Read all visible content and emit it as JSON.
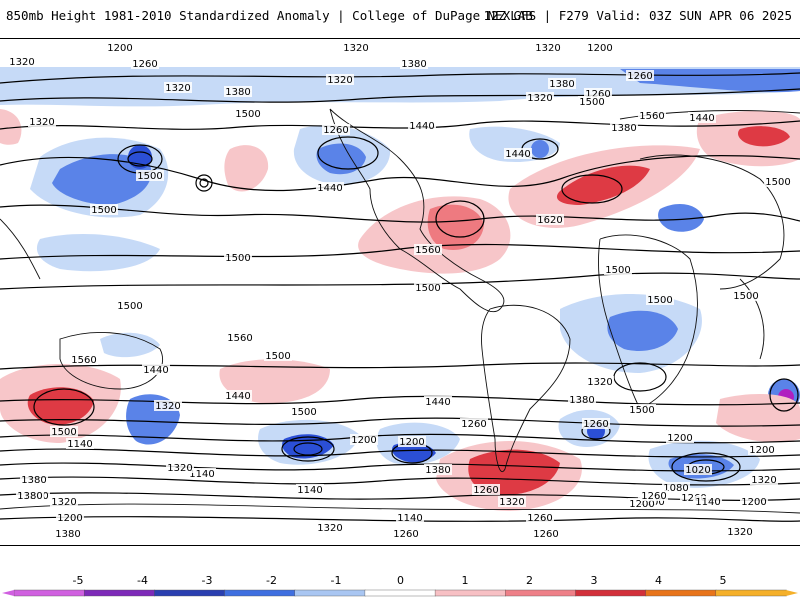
{
  "header": {
    "title_left": "850mb Height 1981-2010 Standardized Anomaly | College of DuPage NEXLAB",
    "title_right": "12Z GFS | F279 Valid: 03Z SUN APR 06 2025"
  },
  "colors": {
    "strong_blue": "#2b4fd6",
    "medium_blue": "#5a83e8",
    "light_blue": "#c6daf7",
    "light_red": "#f7c6c9",
    "medium_red": "#ee7a80",
    "strong_red": "#de3a44",
    "purple": "#b020c0",
    "contour": "#000000"
  },
  "contour_labels": [
    {
      "text": "1200"
    },
    {
      "text": "1260"
    },
    {
      "text": "1200"
    },
    {
      "text": "1320"
    },
    {
      "text": "1320"
    },
    {
      "text": "1260"
    },
    {
      "text": "1380"
    },
    {
      "text": "1320"
    },
    {
      "text": "1260"
    },
    {
      "text": "1320"
    },
    {
      "text": "1320"
    },
    {
      "text": "1380"
    },
    {
      "text": "1380"
    },
    {
      "text": "1320"
    },
    {
      "text": "1500"
    },
    {
      "text": "1560"
    },
    {
      "text": "1440"
    },
    {
      "text": "1320"
    },
    {
      "text": "1440"
    },
    {
      "text": "1260"
    },
    {
      "text": "1380"
    },
    {
      "text": "1500"
    },
    {
      "text": "1500"
    },
    {
      "text": "1440"
    },
    {
      "text": "1440"
    },
    {
      "text": "1620"
    },
    {
      "text": "1500"
    },
    {
      "text": "1500"
    },
    {
      "text": "1560"
    },
    {
      "text": "1500"
    },
    {
      "text": "1500"
    },
    {
      "text": "1500"
    },
    {
      "text": "1500"
    },
    {
      "text": "1500"
    },
    {
      "text": "1500"
    },
    {
      "text": "1560"
    },
    {
      "text": "1560"
    },
    {
      "text": "1500"
    },
    {
      "text": "1440"
    },
    {
      "text": "1320"
    },
    {
      "text": "1500"
    },
    {
      "text": "1440"
    },
    {
      "text": "1500"
    },
    {
      "text": "1380"
    },
    {
      "text": "1500"
    },
    {
      "text": "1440"
    },
    {
      "text": "1260"
    },
    {
      "text": "1200"
    },
    {
      "text": "1380"
    },
    {
      "text": "1140"
    },
    {
      "text": "1320"
    },
    {
      "text": "1200"
    },
    {
      "text": "1260"
    },
    {
      "text": "1380"
    },
    {
      "text": "1320"
    },
    {
      "text": "1260"
    },
    {
      "text": "1200"
    },
    {
      "text": "1140"
    },
    {
      "text": "1140"
    },
    {
      "text": "1320"
    },
    {
      "text": "1200"
    },
    {
      "text": "1080"
    },
    {
      "text": "1020"
    },
    {
      "text": "1260"
    },
    {
      "text": "1200"
    },
    {
      "text": "1200"
    },
    {
      "text": "1140"
    },
    {
      "text": "1320"
    },
    {
      "text": "1200"
    },
    {
      "text": "1260"
    },
    {
      "text": "1200"
    },
    {
      "text": "1200"
    },
    {
      "text": "1260"
    },
    {
      "text": "1140"
    },
    {
      "text": "1320"
    },
    {
      "text": "1380"
    },
    {
      "text": "1380"
    },
    {
      "text": "1320"
    },
    {
      "text": "1260"
    },
    {
      "text": "1260"
    },
    {
      "text": "1320"
    }
  ],
  "colorbar": {
    "ticks": [
      "-5",
      "-4",
      "-3",
      "-2",
      "-1",
      "0",
      "1",
      "2",
      "3",
      "4",
      "5"
    ],
    "colors": [
      "#d060e0",
      "#7d2ab8",
      "#2a3fb0",
      "#3f6fe0",
      "#a9c6f2",
      "#ffffff",
      "#f7c0c4",
      "#ee8088",
      "#d2303a",
      "#e8741a",
      "#f5b02a"
    ]
  }
}
